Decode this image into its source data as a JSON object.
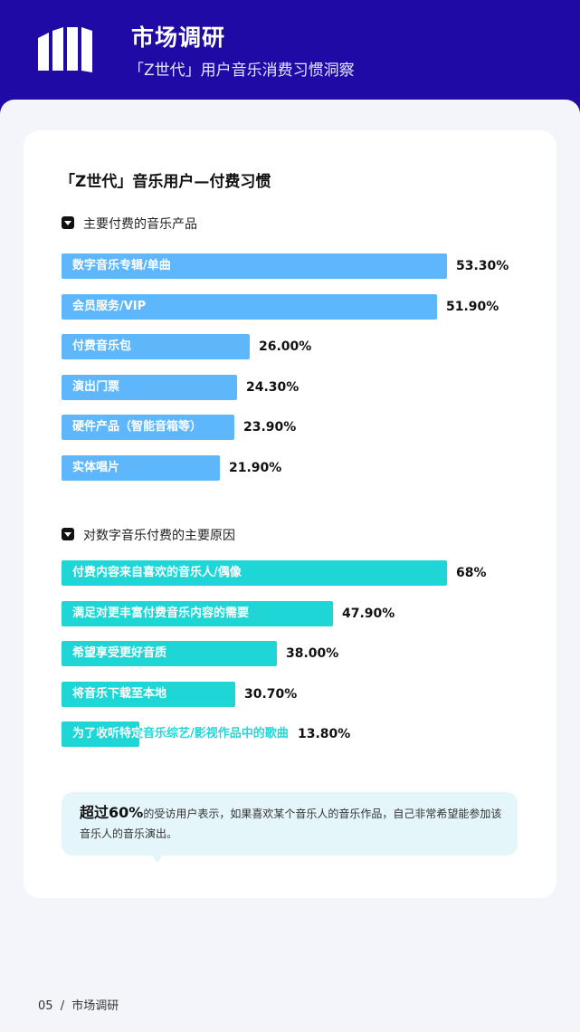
{
  "header": {
    "title": "市场调研",
    "subtitle": "「Z世代」用户音乐消费习惯洞察"
  },
  "card": {
    "title": "「Z世代」音乐用户—付费习惯"
  },
  "chart_data": [
    {
      "type": "bar",
      "orientation": "horizontal",
      "title": "主要付费的音乐产品",
      "color": "#5fb7fb",
      "label_color": "#ffffff",
      "max_value": 53.3,
      "categories": [
        "数字音乐专辑/单曲",
        "会员服务/VIP",
        "付费音乐包",
        "演出门票",
        "硬件产品（智能音箱等）",
        "实体唱片"
      ],
      "values": [
        53.3,
        51.9,
        26.0,
        24.3,
        23.9,
        21.9
      ],
      "value_labels": [
        "53.30%",
        "51.90%",
        "26.00%",
        "24.30%",
        "23.90%",
        "21.90%"
      ]
    },
    {
      "type": "bar",
      "orientation": "horizontal",
      "title": "对数字音乐付费的主要原因",
      "color": "#1ed6d6",
      "label_color": "#ffffff",
      "overflow_label_color": "#1ed6d6",
      "max_value": 68,
      "categories": [
        "付费内容来自喜欢的音乐人/偶像",
        "满足对更丰富付费音乐内容的需要",
        "希望享受更好音质",
        "将音乐下载至本地",
        "为了收听特定音乐综艺/影视作品中的歌曲"
      ],
      "values": [
        68,
        47.9,
        38.0,
        30.7,
        13.8
      ],
      "value_labels": [
        "68%",
        "47.90%",
        "38.00%",
        "30.70%",
        "13.80%"
      ]
    }
  ],
  "note": {
    "highlight": "超过60%",
    "text": "的受访用户表示，如果喜欢某个音乐人的音乐作品，自己非常希望能参加该音乐人的音乐演出。"
  },
  "footer": {
    "page": "05",
    "separator": "/",
    "label": "市场调研"
  }
}
